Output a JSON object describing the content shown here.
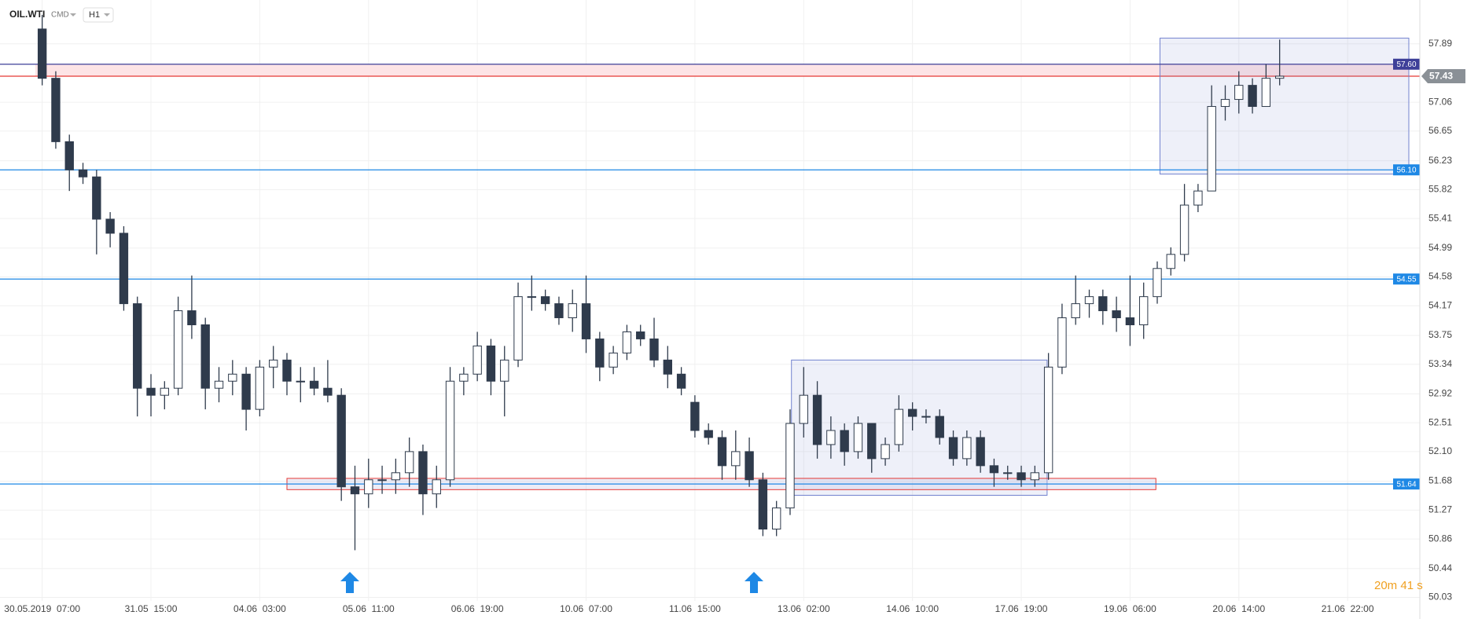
{
  "chart_data": {
    "type": "candlestick",
    "symbol": "OIL.WTI",
    "market": "CMD",
    "interval": "H1",
    "timer": "20m 41 s",
    "categories": [
      "30.05.2019  07:00",
      null,
      null,
      null,
      null,
      null,
      null,
      null,
      "31.05  15:00",
      null,
      null,
      null,
      null,
      null,
      null,
      null,
      "04.06  03:00",
      null,
      null,
      null,
      null,
      null,
      null,
      null,
      "05.06  11:00",
      null,
      null,
      null,
      null,
      null,
      null,
      null,
      "06.06  19:00",
      null,
      null,
      null,
      null,
      null,
      null,
      null,
      "10.06  07:00",
      null,
      null,
      null,
      null,
      null,
      null,
      null,
      "11.06  15:00",
      null,
      null,
      null,
      null,
      null,
      null,
      null,
      "13.06  02:00",
      null,
      null,
      null,
      null,
      null,
      null,
      null,
      "14.06  10:00",
      null,
      null,
      null,
      null,
      null,
      null,
      null,
      "17.06  19:00",
      null,
      null,
      null,
      null,
      null,
      null,
      null,
      "19.06  06:00",
      null,
      null,
      null,
      null,
      null,
      null,
      null,
      "20.06  14:00",
      null,
      null,
      null,
      null,
      null,
      null,
      null,
      "21.06  22:00",
      null,
      null,
      null,
      null
    ],
    "candles": [
      [
        58.1,
        58.3,
        57.3,
        57.4
      ],
      [
        57.4,
        57.5,
        56.4,
        56.5
      ],
      [
        56.5,
        56.6,
        55.8,
        56.1
      ],
      [
        56.1,
        56.2,
        55.9,
        56.0
      ],
      [
        56.0,
        56.1,
        54.9,
        55.4
      ],
      [
        55.4,
        55.5,
        55.0,
        55.2
      ],
      [
        55.2,
        55.3,
        54.1,
        54.2
      ],
      [
        54.2,
        54.3,
        52.6,
        53.0
      ],
      [
        53.0,
        53.2,
        52.6,
        52.9
      ],
      [
        52.9,
        53.1,
        52.7,
        53.0
      ],
      [
        53.0,
        54.3,
        52.9,
        54.1
      ],
      [
        54.1,
        54.6,
        53.7,
        53.9
      ],
      [
        53.9,
        54.0,
        52.7,
        53.0
      ],
      [
        53.0,
        53.3,
        52.8,
        53.1
      ],
      [
        53.1,
        53.4,
        52.9,
        53.2
      ],
      [
        53.2,
        53.3,
        52.4,
        52.7
      ],
      [
        52.7,
        53.4,
        52.6,
        53.3
      ],
      [
        53.3,
        53.6,
        53.0,
        53.4
      ],
      [
        53.4,
        53.5,
        52.9,
        53.1
      ],
      [
        53.1,
        53.3,
        52.8,
        53.1
      ],
      [
        53.1,
        53.3,
        52.9,
        53.0
      ],
      [
        53.0,
        53.4,
        52.8,
        52.9
      ],
      [
        52.9,
        53.0,
        51.4,
        51.6
      ],
      [
        51.6,
        51.9,
        50.7,
        51.5
      ],
      [
        51.5,
        52.0,
        51.3,
        51.7
      ],
      [
        51.7,
        51.9,
        51.5,
        51.7
      ],
      [
        51.7,
        52.0,
        51.5,
        51.8
      ],
      [
        51.8,
        52.3,
        51.6,
        52.1
      ],
      [
        52.1,
        52.2,
        51.2,
        51.5
      ],
      [
        51.5,
        51.9,
        51.3,
        51.7
      ],
      [
        51.7,
        53.3,
        51.6,
        53.1
      ],
      [
        53.1,
        53.3,
        52.9,
        53.2
      ],
      [
        53.2,
        53.8,
        53.1,
        53.6
      ],
      [
        53.6,
        53.7,
        52.9,
        53.1
      ],
      [
        53.1,
        53.6,
        52.6,
        53.4
      ],
      [
        53.4,
        54.5,
        53.3,
        54.3
      ],
      [
        54.3,
        54.6,
        54.1,
        54.3
      ],
      [
        54.3,
        54.4,
        54.1,
        54.2
      ],
      [
        54.2,
        54.3,
        53.9,
        54.0
      ],
      [
        54.0,
        54.4,
        53.8,
        54.2
      ],
      [
        54.2,
        54.6,
        53.5,
        53.7
      ],
      [
        53.7,
        53.8,
        53.1,
        53.3
      ],
      [
        53.3,
        53.6,
        53.2,
        53.5
      ],
      [
        53.5,
        53.9,
        53.4,
        53.8
      ],
      [
        53.8,
        53.9,
        53.6,
        53.7
      ],
      [
        53.7,
        54.0,
        53.3,
        53.4
      ],
      [
        53.4,
        53.6,
        53.0,
        53.2
      ],
      [
        53.2,
        53.3,
        52.9,
        53.0
      ],
      [
        52.8,
        52.9,
        52.3,
        52.4
      ],
      [
        52.4,
        52.5,
        52.2,
        52.3
      ],
      [
        52.3,
        52.4,
        51.7,
        51.9
      ],
      [
        51.9,
        52.4,
        51.7,
        52.1
      ],
      [
        52.1,
        52.3,
        51.6,
        51.7
      ],
      [
        51.7,
        51.8,
        50.9,
        51.0
      ],
      [
        51.0,
        51.4,
        50.9,
        51.3
      ],
      [
        51.3,
        52.7,
        51.2,
        52.5
      ],
      [
        52.5,
        53.3,
        52.3,
        52.9
      ],
      [
        52.9,
        53.1,
        52.0,
        52.2
      ],
      [
        52.2,
        52.6,
        52.0,
        52.4
      ],
      [
        52.4,
        52.5,
        51.9,
        52.1
      ],
      [
        52.1,
        52.6,
        52.0,
        52.5
      ],
      [
        52.5,
        52.5,
        51.8,
        52.0
      ],
      [
        52.0,
        52.3,
        51.9,
        52.2
      ],
      [
        52.2,
        52.9,
        52.1,
        52.7
      ],
      [
        52.7,
        52.8,
        52.4,
        52.6
      ],
      [
        52.6,
        52.7,
        52.5,
        52.6
      ],
      [
        52.6,
        52.7,
        52.2,
        52.3
      ],
      [
        52.3,
        52.4,
        51.9,
        52.0
      ],
      [
        52.0,
        52.4,
        51.9,
        52.3
      ],
      [
        52.3,
        52.4,
        51.8,
        51.9
      ],
      [
        51.9,
        52.0,
        51.6,
        51.8
      ],
      [
        51.8,
        51.9,
        51.7,
        51.8
      ],
      [
        51.8,
        51.9,
        51.6,
        51.7
      ],
      [
        51.7,
        51.9,
        51.6,
        51.8
      ],
      [
        51.8,
        53.5,
        51.7,
        53.3
      ],
      [
        53.3,
        54.2,
        53.2,
        54.0
      ],
      [
        54.0,
        54.6,
        53.9,
        54.2
      ],
      [
        54.2,
        54.4,
        54.0,
        54.3
      ],
      [
        54.3,
        54.4,
        53.9,
        54.1
      ],
      [
        54.1,
        54.3,
        53.8,
        54.0
      ],
      [
        54.0,
        54.6,
        53.6,
        53.9
      ],
      [
        53.9,
        54.5,
        53.7,
        54.3
      ],
      [
        54.3,
        54.8,
        54.2,
        54.7
      ],
      [
        54.7,
        55.0,
        54.6,
        54.9
      ],
      [
        54.9,
        55.9,
        54.8,
        55.6
      ],
      [
        55.6,
        55.9,
        55.5,
        55.8
      ],
      [
        55.8,
        57.3,
        55.8,
        57.0
      ],
      [
        57.0,
        57.3,
        56.8,
        57.1
      ],
      [
        57.1,
        57.5,
        56.9,
        57.3
      ],
      [
        57.3,
        57.4,
        56.9,
        57.0
      ],
      [
        57.0,
        57.6,
        57.0,
        57.4
      ],
      [
        57.4,
        57.95,
        57.3,
        57.43
      ],
      null,
      null,
      null,
      null,
      null,
      null,
      null,
      null,
      null
    ],
    "up_color": "#ffffff",
    "down_color": "#2f3b4c",
    "ylim": [
      49.98,
      58.4
    ],
    "yticks": [
      57.89,
      57.06,
      56.65,
      56.23,
      55.82,
      55.41,
      54.99,
      54.58,
      54.17,
      53.75,
      53.34,
      52.92,
      52.51,
      {
        "value": 52.1,
        "label": "52.10"
      },
      51.68,
      51.27,
      50.86,
      50.44,
      50.03
    ],
    "grid": true,
    "levels": [
      {
        "value": 57.6,
        "label": "57.60",
        "color": "#3d3f98"
      },
      {
        "value": 56.1,
        "label": "56.10",
        "color": "#1e88e5"
      },
      {
        "value": 54.55,
        "label": "54.55",
        "color": "#1e88e5"
      },
      {
        "value": 51.64,
        "label": "51.64",
        "color": "#1e88e5"
      }
    ],
    "last_price": 57.43,
    "zones": [
      {
        "y": [
          57.43,
          57.6
        ],
        "from": 0,
        "to": 101,
        "fill": "#fde4e6",
        "stroke": "#e53935"
      },
      {
        "y": [
          56.04,
          57.97
        ],
        "from": 82.7,
        "to": 101,
        "fill": "rgba(120,140,210,0.13)",
        "stroke": "#7282cf"
      },
      {
        "y": [
          51.48,
          53.4
        ],
        "from": 55.6,
        "to": 74.4,
        "fill": "rgba(120,140,210,0.13)",
        "stroke": "#7282cf"
      },
      {
        "y": [
          51.56,
          51.72
        ],
        "from": 18.5,
        "to": 82.4,
        "fill": "rgba(200,200,230,0.35)",
        "stroke": "#e53935"
      }
    ]
  }
}
